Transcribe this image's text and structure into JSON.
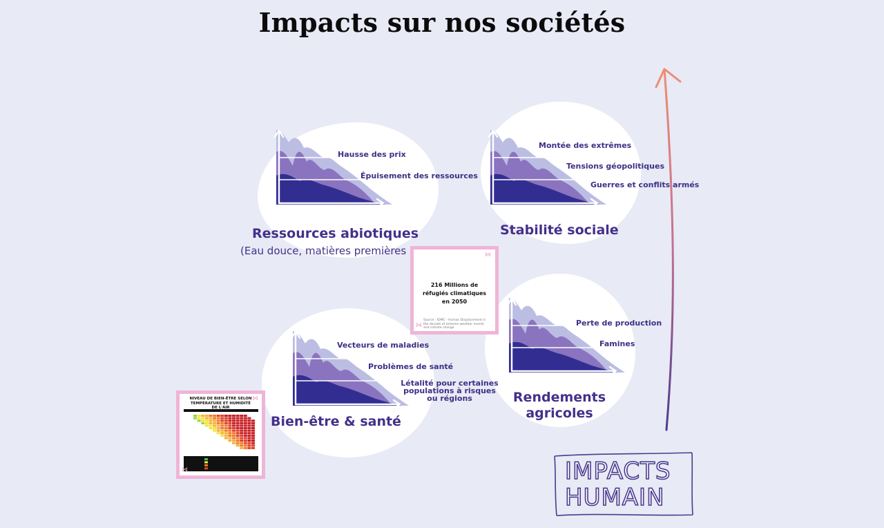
{
  "title": "Impacts sur nos sociétés",
  "colors": {
    "background": "#e8eaf5",
    "accent_text": "#44308a",
    "layer_light": "#bcbde3",
    "layer_mid": "#8a74bf",
    "layer_dark": "#322e91",
    "card_border": "#efb5d6"
  },
  "categories": {
    "ressources": {
      "title": "Ressources abiotiques",
      "subtitle": "(Eau douce, matières premières",
      "labels": [
        "Hausse des prix",
        "Épuisement des ressources"
      ]
    },
    "stabilite": {
      "title": "Stabilité sociale",
      "labels": [
        "Montée des extrêmes",
        "Tensions géopolitiques",
        "Guerres et conflits armés"
      ]
    },
    "rendements": {
      "title": "Rendements agricoles",
      "labels": [
        "Perte de production",
        "Famines"
      ]
    },
    "sante": {
      "title": "Bien-être & santé",
      "labels": [
        "Vecteurs de maladies",
        "Problèmes de santé",
        "Létalité pour certaines populations à risques ou régions"
      ]
    }
  },
  "refugee_card": {
    "text": "216 Millions de réfugiés climatiques en 2050",
    "source": "Source : IDMC - Human Displacement in the decade of extreme weather events and climate change"
  },
  "heatmap_card": {
    "title": "NIVEAU DE BIEN-ÊTRE SELON TEMPÉRATURE ET HUMIDITÉ DE L'AIR"
  },
  "stamp": {
    "line1": "IMPACTS",
    "line2": "HUMAIN"
  },
  "icons": [
    "butterfly-icon",
    "up-arrow-icon"
  ]
}
